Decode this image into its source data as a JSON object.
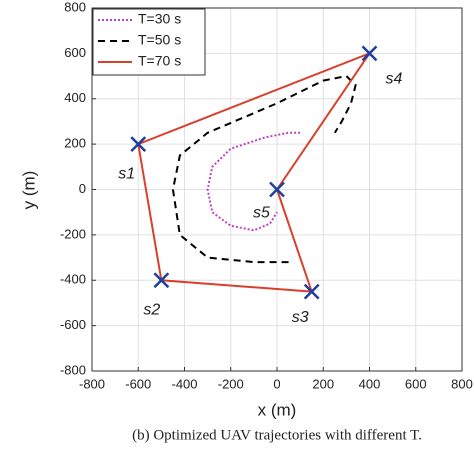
{
  "chart_data": {
    "type": "line",
    "xlabel": "x (m)",
    "ylabel": "y (m)",
    "caption": "(b) Optimized UAV trajectories with different T.",
    "xlim": [
      -800,
      800
    ],
    "ylim": [
      -800,
      800
    ],
    "xticks": [
      -800,
      -600,
      -400,
      -200,
      0,
      200,
      400,
      600,
      800
    ],
    "yticks": [
      -800,
      -600,
      -400,
      -200,
      0,
      200,
      400,
      600,
      800
    ],
    "grid": true,
    "legend": "upper left",
    "series": [
      {
        "name": "T=30 s",
        "color": "#c040c0",
        "style": "dotted",
        "x": [
          100,
          50,
          -50,
          -200,
          -280,
          -300,
          -280,
          -200,
          -100,
          -30,
          0
        ],
        "y": [
          250,
          250,
          230,
          180,
          100,
          0,
          -100,
          -160,
          -180,
          -150,
          -100
        ]
      },
      {
        "name": "T=50 s",
        "color": "#000000",
        "style": "dashed",
        "x": [
          50,
          -100,
          -300,
          -420,
          -450,
          -420,
          -300,
          0,
          200,
          300,
          340,
          320,
          280,
          250
        ],
        "y": [
          -320,
          -320,
          -300,
          -200,
          0,
          150,
          250,
          380,
          480,
          500,
          460,
          380,
          300,
          250
        ]
      },
      {
        "name": "T=70 s",
        "color": "#d9402b",
        "style": "solid",
        "x": [
          -600,
          400,
          0,
          150,
          -500,
          -600
        ],
        "y": [
          200,
          600,
          0,
          -450,
          -400,
          200
        ]
      }
    ],
    "markers": {
      "color": "#1f3fa0",
      "x": [
        -600,
        -500,
        150,
        400,
        0
      ],
      "y": [
        200,
        -400,
        -450,
        600,
        0
      ],
      "labels": [
        "s1",
        "s2",
        "s3",
        "s4",
        "s5"
      ]
    }
  }
}
